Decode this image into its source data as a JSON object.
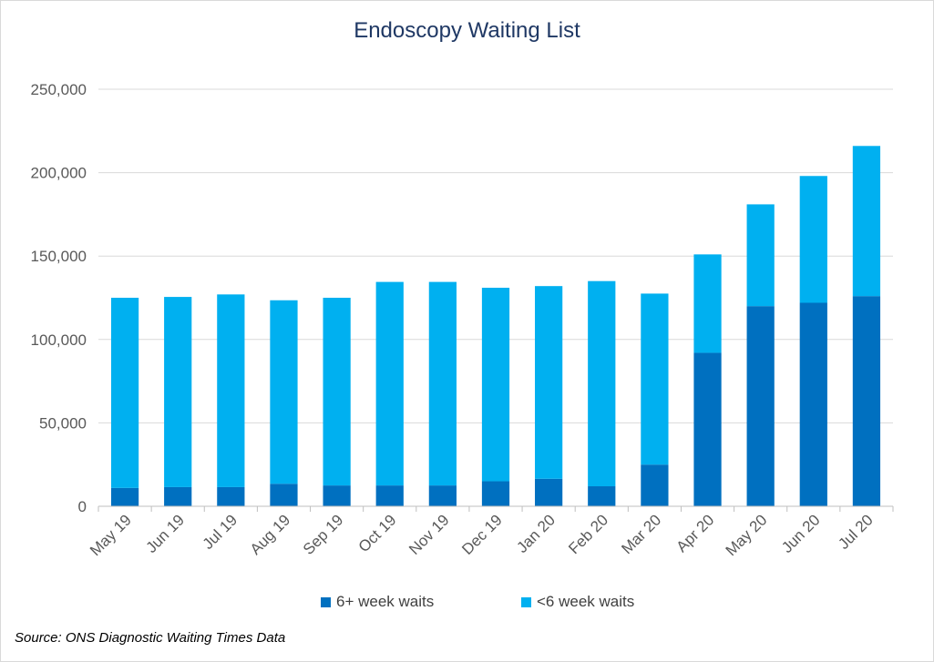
{
  "chart_data": {
    "type": "bar",
    "stacked": true,
    "title": "Endoscopy Waiting List",
    "xlabel": "",
    "ylabel": "",
    "categories": [
      "May 19",
      "Jun 19",
      "Jul 19",
      "Aug 19",
      "Sep 19",
      "Oct 19",
      "Nov 19",
      "Dec 19",
      "Jan 20",
      "Feb 20",
      "Mar 20",
      "Apr 20",
      "May 20",
      "Jun 20",
      "Jul 20"
    ],
    "series": [
      {
        "name": "6+ week waits",
        "color": "#0070c0",
        "values": [
          11000,
          11500,
          11500,
          13500,
          12500,
          12500,
          12500,
          15000,
          16500,
          12000,
          25000,
          92000,
          120000,
          122000,
          126000
        ]
      },
      {
        "name": "<6 week waits",
        "color": "#00b0f0",
        "values": [
          114000,
          114000,
          115500,
          110000,
          112500,
          122000,
          122000,
          116000,
          115500,
          123000,
          102500,
          59000,
          61000,
          76000,
          90000
        ]
      }
    ],
    "ylim": [
      0,
      250000
    ],
    "yticks": [
      "0",
      "50,000",
      "100,000",
      "150,000",
      "200,000",
      "250,000"
    ],
    "grid": true,
    "legend": "bottom"
  },
  "source": "Source: ONS Diagnostic Waiting Times Data"
}
